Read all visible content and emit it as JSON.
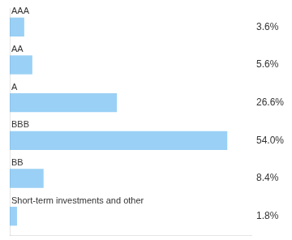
{
  "chart_data": {
    "type": "bar",
    "orientation": "horizontal",
    "categories": [
      "AAA",
      "AA",
      "A",
      "BBB",
      "BB",
      "Short-term investments and other"
    ],
    "values": [
      3.6,
      5.6,
      26.6,
      54.0,
      8.4,
      1.8
    ],
    "value_labels": [
      "3.6%",
      "5.6%",
      "26.6%",
      "54.0%",
      "8.4%",
      "1.8%"
    ],
    "xlim": [
      0,
      60
    ],
    "data_labels": true,
    "tick_labels": false,
    "grid": false
  }
}
